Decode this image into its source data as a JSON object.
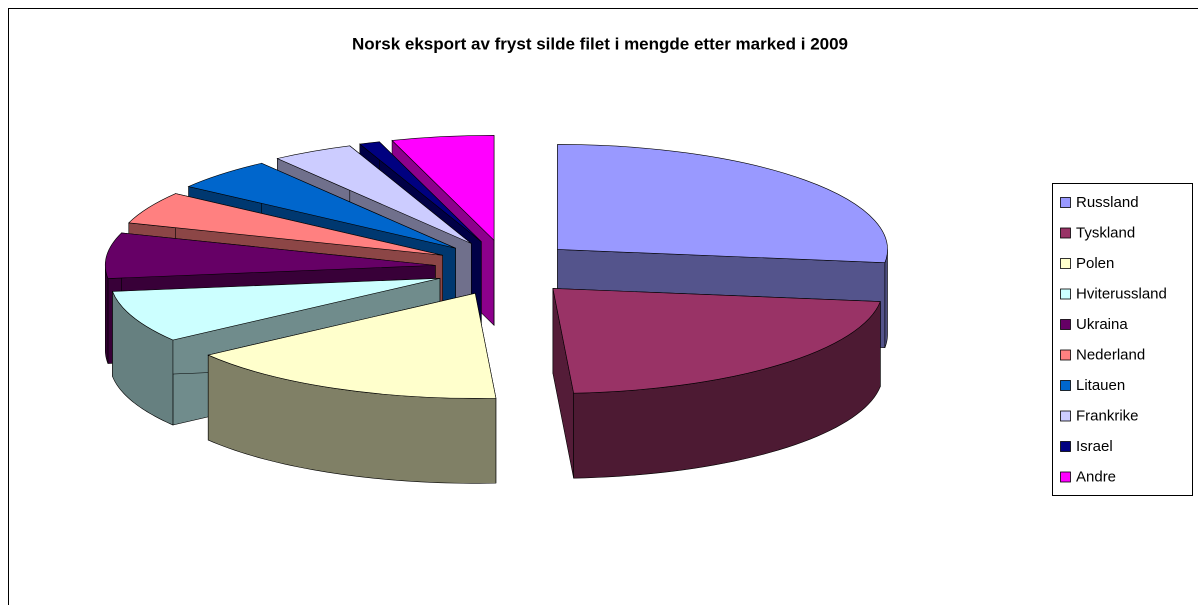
{
  "chart_data": {
    "type": "pie3d",
    "title": "Norsk eksport av fryst silde filet i mengde etter marked i 2009",
    "categories": [
      "Russland",
      "Tyskland",
      "Polen",
      "Hviterussland",
      "Ukraina",
      "Nederland",
      "Litauen",
      "Frankrike",
      "Israel",
      "Andre"
    ],
    "values": [
      27,
      22,
      16,
      8,
      7,
      5,
      5,
      4,
      1,
      5
    ],
    "colors": [
      "#9999ff",
      "#993366",
      "#ffffcc",
      "#ccffff",
      "#660066",
      "#ff8080",
      "#0066cc",
      "#ccccff",
      "#000080",
      "#ff00ff"
    ],
    "legend": "right"
  }
}
